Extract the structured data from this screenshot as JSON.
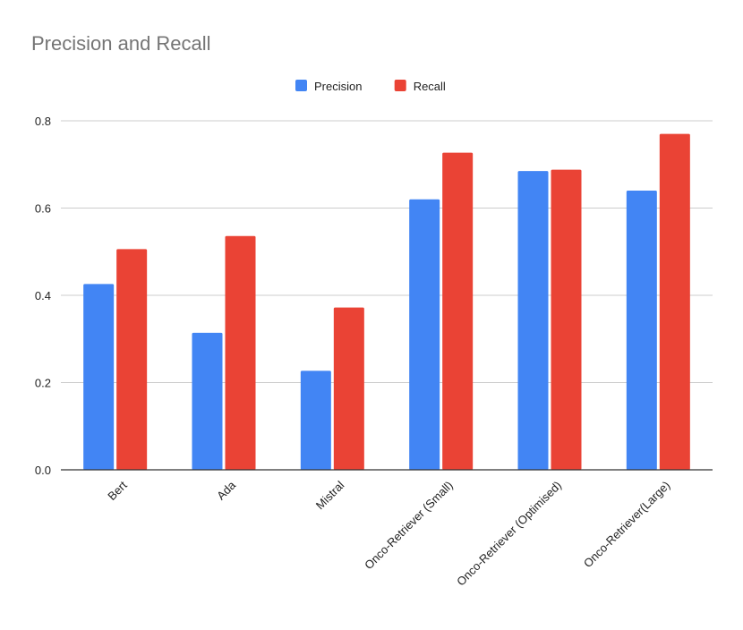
{
  "chart_data": {
    "type": "bar",
    "title": "Precision and Recall",
    "xlabel": "",
    "ylabel": "",
    "ylim": [
      0,
      0.8
    ],
    "yticks": [
      "0.0",
      "0.2",
      "0.4",
      "0.6",
      "0.8"
    ],
    "grid": true,
    "legend_position": "top-center",
    "categories": [
      "Bert",
      "Ada",
      "Mistral",
      "Onco-Retriever (Small)",
      "Onco-Retriever (Optimised)",
      "Onco-Retriever(Large)"
    ],
    "series": [
      {
        "name": "Precision",
        "color": "#4285f4",
        "values": [
          0.426,
          0.314,
          0.227,
          0.62,
          0.685,
          0.64
        ]
      },
      {
        "name": "Recall",
        "color": "#ea4335",
        "values": [
          0.506,
          0.536,
          0.372,
          0.727,
          0.688,
          0.77
        ]
      }
    ],
    "colors": {
      "title": "#757575",
      "axis_text": "#222222",
      "grid": "#cccccc",
      "axis_line": "#333333",
      "background": "#ffffff"
    }
  }
}
